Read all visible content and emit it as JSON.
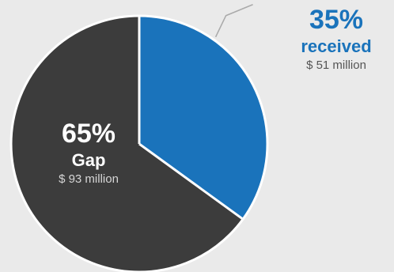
{
  "chart_data": {
    "type": "pie",
    "slices": [
      {
        "label": "received",
        "percent": 35,
        "amount": "$ 51 million",
        "color": "#1a73bb"
      },
      {
        "label": "Gap",
        "percent": 65,
        "amount": "$ 93 million",
        "color": "#3c3c3c"
      }
    ],
    "start_angle": "12 o'clock",
    "direction": "clockwise"
  },
  "labels": {
    "gap": {
      "pct": "65%",
      "name": "Gap",
      "amount": "$ 93 million"
    },
    "received": {
      "pct": "35%",
      "name": "received",
      "amount": "$ 51 million"
    }
  },
  "colors": {
    "background": "#eaeaea",
    "received": "#1a73bb",
    "gap": "#3c3c3c",
    "separator": "#ffffff",
    "leader_line": "#aaaaaa"
  }
}
